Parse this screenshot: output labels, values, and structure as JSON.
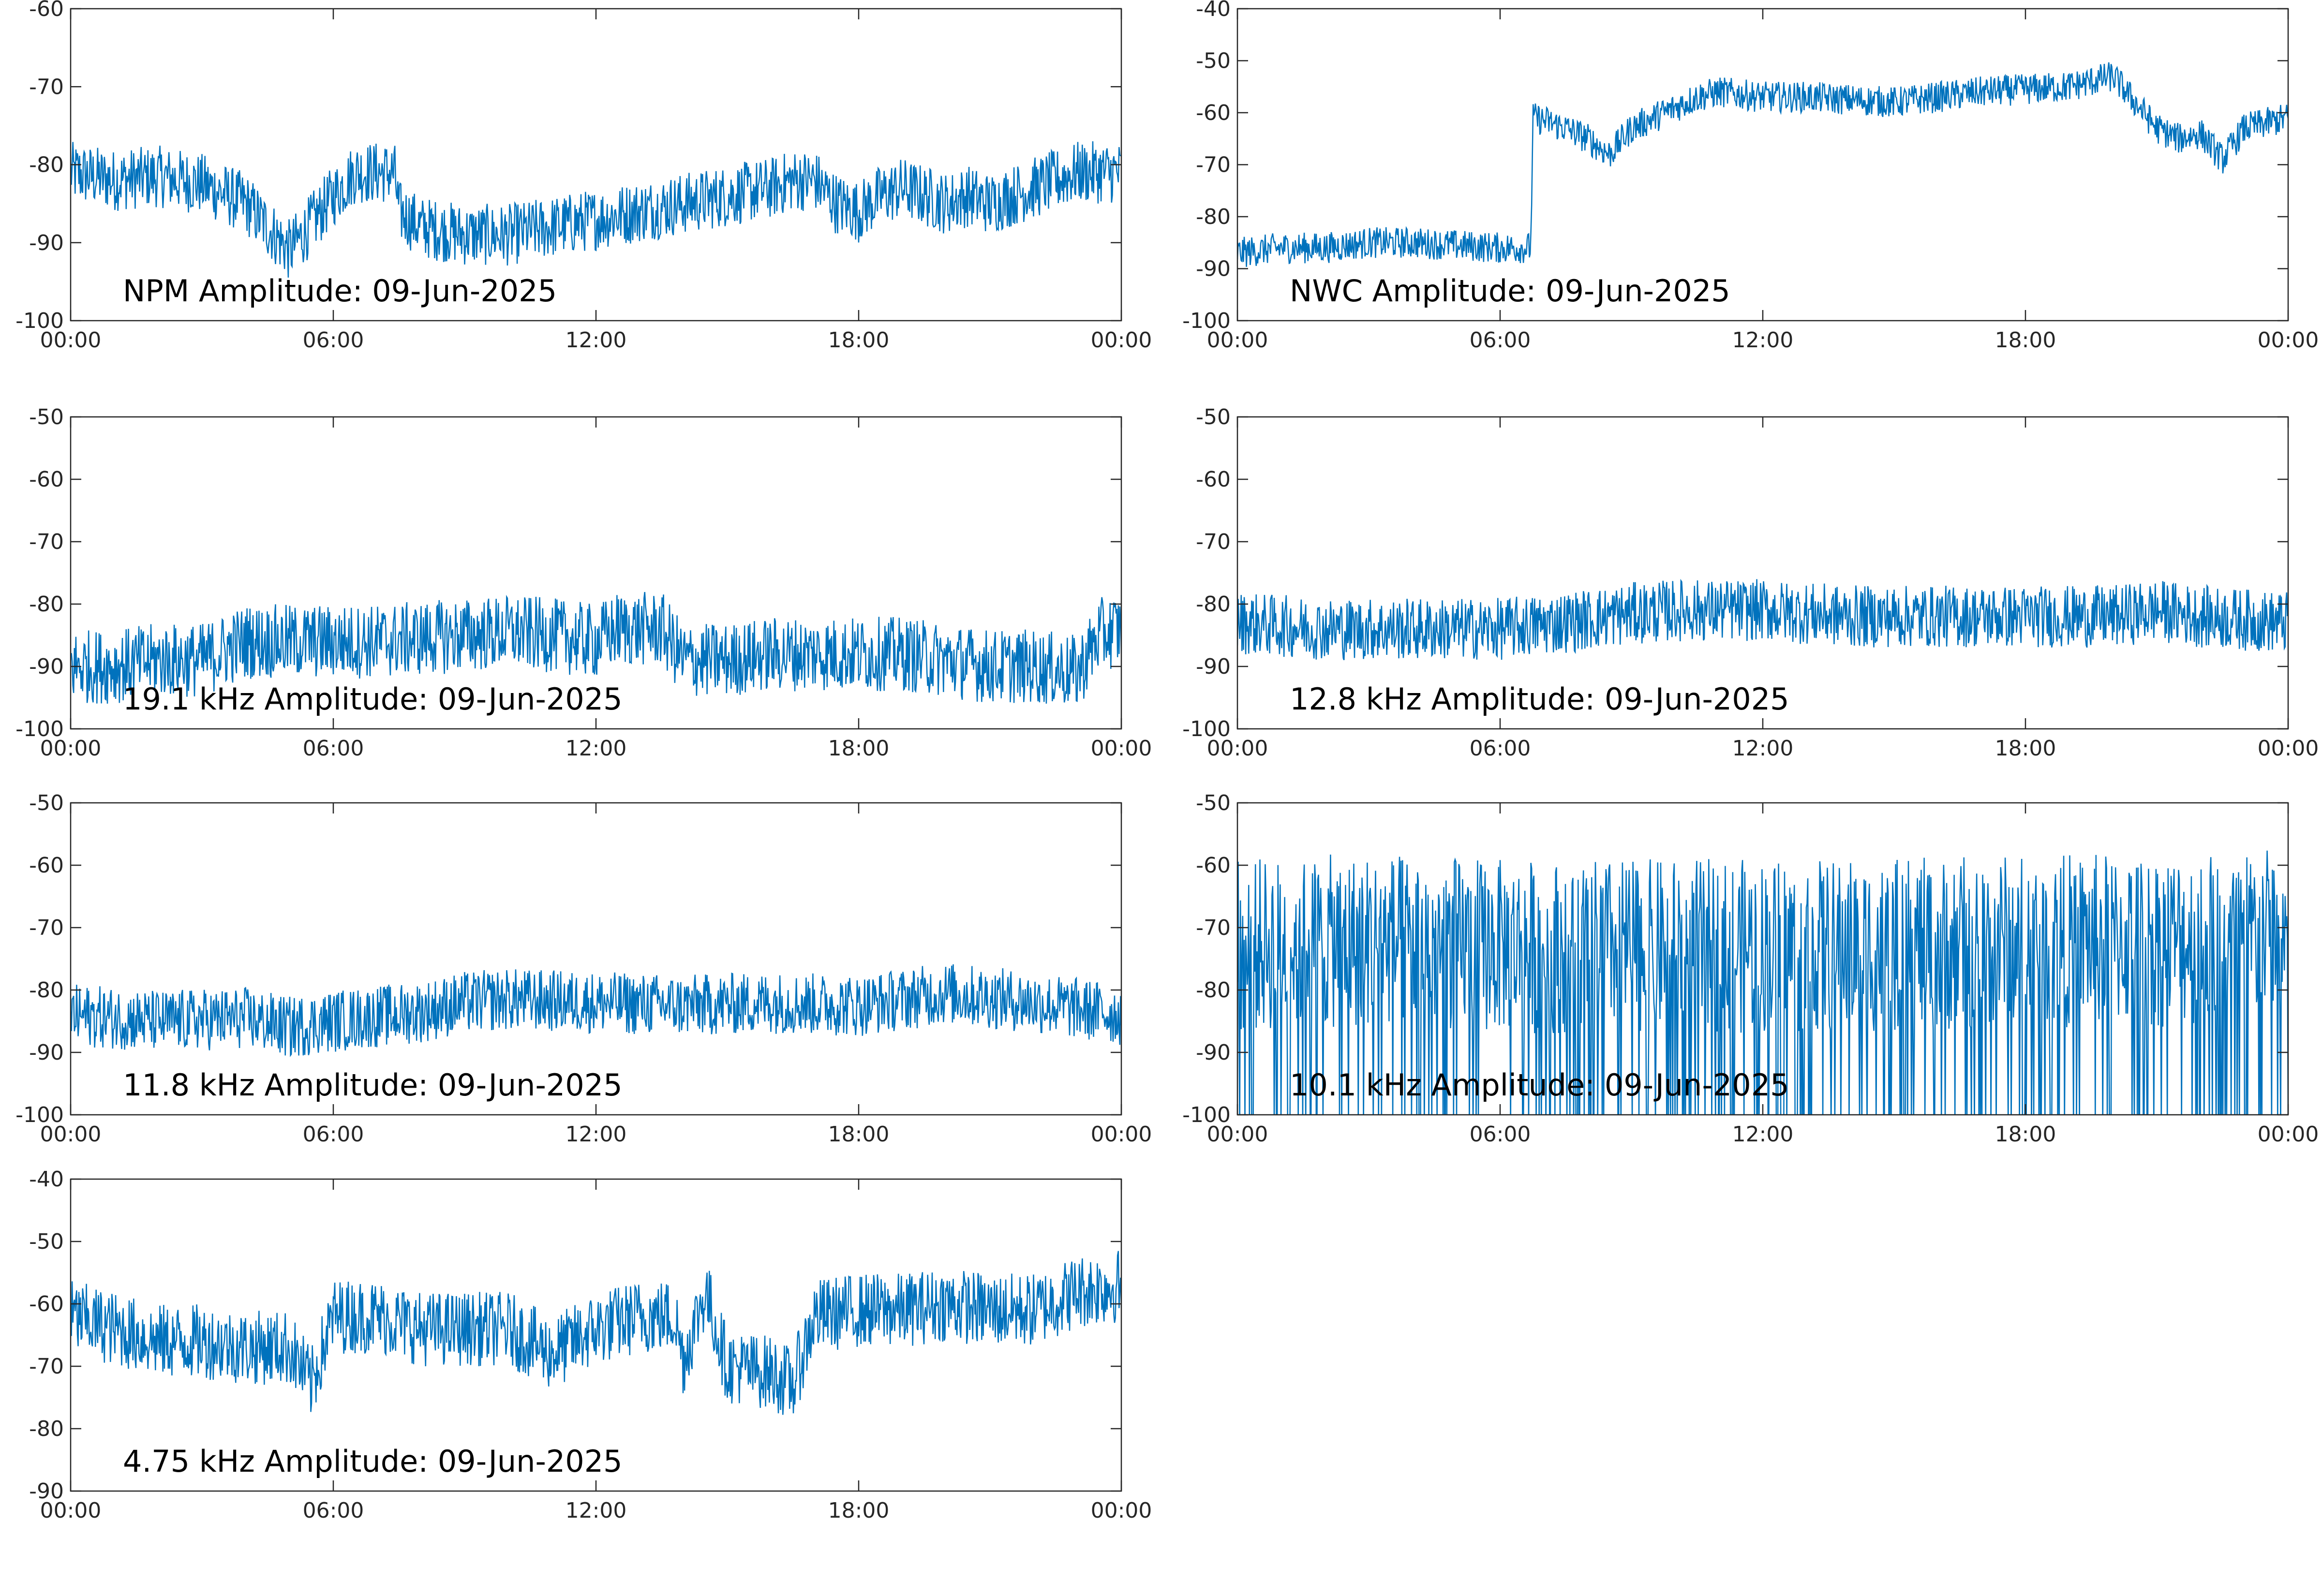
{
  "figure": {
    "background": "#ffffff",
    "line_color": "#0072bd",
    "axis_color": "#262626"
  },
  "chart_data": [
    {
      "type": "line",
      "title": "NPM Amplitude: 09-Jun-2025",
      "xlabel": "",
      "ylabel": "",
      "xlim": [
        "00:00",
        "00:00"
      ],
      "ylim": [
        -100,
        -60
      ],
      "xticks": [
        "00:00",
        "06:00",
        "12:00",
        "18:00",
        "00:00"
      ],
      "yticks": [
        -60,
        -70,
        -80,
        -90,
        -100
      ],
      "grid": false,
      "series": [
        {
          "x_hours": [
            0,
            1,
            2,
            3,
            4,
            4.5,
            5,
            5.3,
            6,
            6.5,
            7,
            7.4,
            7.5,
            8,
            9,
            10,
            11,
            12,
            13,
            14,
            15,
            16,
            16.5,
            17,
            17.5,
            18,
            18.5,
            19,
            19.5,
            20,
            20.5,
            21,
            22,
            23,
            24
          ],
          "y": [
            -81,
            -82,
            -81.5,
            -82.5,
            -85,
            -88,
            -91,
            -89,
            -84,
            -81,
            -81,
            -81,
            -86,
            -88,
            -89,
            -89,
            -88,
            -87,
            -86,
            -85,
            -84,
            -83,
            -82,
            -82,
            -85,
            -86,
            -84,
            -83,
            -84,
            -85,
            -84,
            -85,
            -83,
            -81,
            -81
          ]
        }
      ]
    },
    {
      "type": "line",
      "title": "NWC Amplitude: 09-Jun-2025",
      "xlabel": "",
      "ylabel": "",
      "xlim": [
        "00:00",
        "00:00"
      ],
      "ylim": [
        -100,
        -40
      ],
      "xticks": [
        "00:00",
        "06:00",
        "12:00",
        "18:00",
        "00:00"
      ],
      "yticks": [
        -40,
        -50,
        -60,
        -70,
        -80,
        -90,
        -100
      ],
      "grid": false,
      "series": [
        {
          "x_hours": [
            0,
            1,
            2,
            3,
            4,
            5,
            6,
            6.7,
            6.75,
            7,
            7.5,
            8,
            8.5,
            9,
            9.5,
            10,
            10.5,
            11,
            12,
            13,
            14,
            15,
            16,
            17,
            18,
            19,
            19.5,
            20,
            20.5,
            21,
            21.5,
            22,
            22.5,
            23,
            24
          ],
          "y": [
            -87,
            -86,
            -86,
            -85,
            -85,
            -85.5,
            -86,
            -86,
            -61,
            -61.5,
            -63,
            -65,
            -68,
            -63,
            -61,
            -59,
            -57,
            -56,
            -57,
            -57,
            -57.5,
            -58,
            -57,
            -56,
            -55.5,
            -55,
            -54,
            -53,
            -58,
            -63,
            -65,
            -64,
            -69,
            -63,
            -61
          ]
        }
      ]
    },
    {
      "type": "line",
      "title": "19.1 kHz Amplitude: 09-Jun-2025",
      "xlabel": "",
      "ylabel": "",
      "xlim": [
        "00:00",
        "00:00"
      ],
      "ylim": [
        -100,
        -50
      ],
      "xticks": [
        "00:00",
        "06:00",
        "12:00",
        "18:00",
        "00:00"
      ],
      "yticks": [
        -50,
        -60,
        -70,
        -80,
        -90,
        -100
      ],
      "grid": false,
      "series": [
        {
          "x_hours": [
            0,
            1,
            2,
            3,
            4,
            5,
            6,
            7,
            8,
            9,
            10,
            11,
            12,
            12.5,
            13,
            13.5,
            14,
            15,
            16,
            17,
            18,
            19,
            20,
            21,
            22,
            23,
            23.5,
            24
          ],
          "y": [
            -90,
            -90,
            -89,
            -89,
            -86,
            -86,
            -86,
            -86,
            -85.5,
            -85,
            -84.5,
            -85,
            -86,
            -84,
            -84,
            -84,
            -89,
            -89,
            -88,
            -88,
            -88,
            -88,
            -89,
            -90,
            -90,
            -91,
            -85,
            -84
          ]
        }
      ]
    },
    {
      "type": "line",
      "title": "12.8 kHz Amplitude: 09-Jun-2025",
      "xlabel": "",
      "ylabel": "",
      "xlim": [
        "00:00",
        "00:00"
      ],
      "ylim": [
        -100,
        -50
      ],
      "xticks": [
        "00:00",
        "06:00",
        "12:00",
        "18:00",
        "00:00"
      ],
      "yticks": [
        -50,
        -60,
        -70,
        -80,
        -90,
        -100
      ],
      "grid": false,
      "series": [
        {
          "x_hours": [
            0,
            2,
            4,
            6,
            8,
            9,
            10,
            12,
            14,
            16,
            18,
            20,
            21,
            22,
            24
          ],
          "y": [
            -83,
            -84,
            -84,
            -84,
            -82.5,
            -81.5,
            -81,
            -81,
            -82,
            -82,
            -82,
            -82,
            -81,
            -82,
            -83
          ]
        }
      ]
    },
    {
      "type": "line",
      "title": "11.8 kHz Amplitude: 09-Jun-2025",
      "xlabel": "",
      "ylabel": "",
      "xlim": [
        "00:00",
        "00:00"
      ],
      "ylim": [
        -100,
        -50
      ],
      "xticks": [
        "00:00",
        "06:00",
        "12:00",
        "18:00",
        "00:00"
      ],
      "yticks": [
        -50,
        -60,
        -70,
        -80,
        -90,
        -100
      ],
      "grid": false,
      "series": [
        {
          "x_hours": [
            0,
            2,
            4,
            5,
            6,
            8,
            9,
            10,
            12,
            14,
            16,
            18,
            19,
            20,
            22,
            24
          ],
          "y": [
            -84,
            -85,
            -84.5,
            -86,
            -85,
            -83.5,
            -82,
            -81.5,
            -82,
            -82.5,
            -82,
            -82.5,
            -81.5,
            -80.5,
            -82,
            -84
          ]
        }
      ]
    },
    {
      "type": "line",
      "title": "10.1 kHz Amplitude: 09-Jun-2025",
      "xlabel": "",
      "ylabel": "",
      "xlim": [
        "00:00",
        "00:00"
      ],
      "ylim": [
        -100,
        -50
      ],
      "xticks": [
        "00:00",
        "06:00",
        "12:00",
        "18:00",
        "00:00"
      ],
      "yticks": [
        -50,
        -60,
        -70,
        -80,
        -90,
        -100
      ],
      "grid": false,
      "series": [
        {
          "x_hours": [
            0,
            3,
            6,
            9,
            12,
            15,
            18,
            21,
            24
          ],
          "y": [
            -73,
            -72,
            -73,
            -73,
            -73,
            -73,
            -72,
            -72,
            -71
          ]
        }
      ]
    },
    {
      "type": "line",
      "title": "4.75 kHz Amplitude: 09-Jun-2025",
      "xlabel": "",
      "ylabel": "",
      "xlim": [
        "00:00",
        "00:00"
      ],
      "ylim": [
        -90,
        -40
      ],
      "xticks": [
        "00:00",
        "06:00",
        "12:00",
        "18:00",
        "00:00"
      ],
      "yticks": [
        -40,
        -50,
        -60,
        -70,
        -80,
        -90
      ],
      "grid": false,
      "series": [
        {
          "x_hours": [
            0,
            1,
            2,
            3,
            4,
            5,
            5.5,
            6,
            7,
            8,
            9,
            10,
            11,
            12,
            13,
            13.8,
            14,
            14.5,
            15,
            16,
            16.5,
            17,
            18,
            19,
            20,
            21,
            22,
            23,
            24
          ],
          "y": [
            -62,
            -64,
            -66,
            -66,
            -67,
            -67,
            -73,
            -62,
            -62,
            -64,
            -64,
            -64,
            -68,
            -64,
            -62,
            -62,
            -69,
            -58,
            -70,
            -71,
            -73,
            -62,
            -61,
            -61,
            -60,
            -61,
            -61,
            -58,
            -57
          ]
        }
      ]
    }
  ]
}
